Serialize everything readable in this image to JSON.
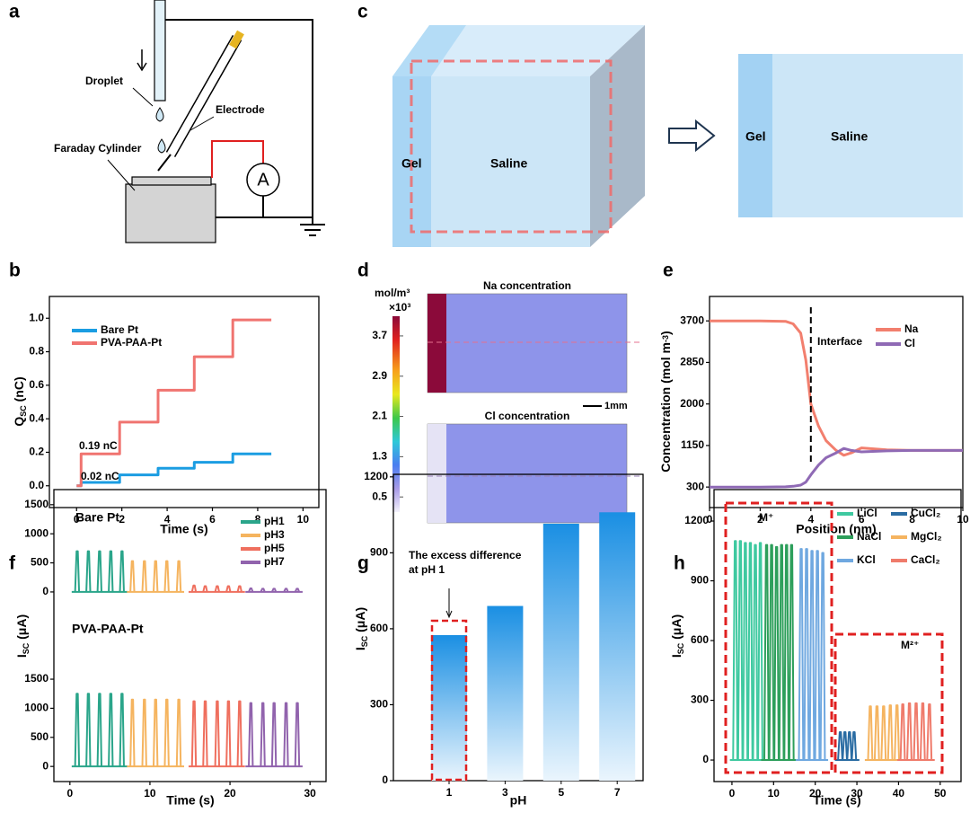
{
  "diagram_a": {
    "label": "a",
    "droplet": "Droplet",
    "electrode": "Electrode",
    "cylinder": "Faraday Cylinder",
    "ammeter": "A"
  },
  "diagram_c": {
    "label": "c",
    "gel": "Gel",
    "saline": "Saline",
    "gel_2": "Gel",
    "saline_2": "Saline"
  },
  "map_d": {
    "label": "d",
    "unit": "mol/m³",
    "scale": "×10³",
    "na_title": "Na concentration",
    "cl_title": "Cl concentration",
    "scalebar": "1mm",
    "colorbar": {
      "lim": [
        0.2,
        4.27
      ],
      "ticks": [
        {
          "value": 3.7,
          "label": "3.7"
        },
        {
          "value": 2.9,
          "label": "2.9"
        },
        {
          "value": 2.1,
          "label": "2.1"
        },
        {
          "value": 1.3,
          "label": "1.3"
        },
        {
          "value": 0.5,
          "label": "0.5"
        }
      ]
    }
  },
  "chart_data": [
    {
      "type": "line",
      "label": "b",
      "ylabel": {
        "text": "Q",
        "sub": "SC",
        "rest": " (nC)"
      },
      "xlabel": "Time (s)",
      "xlim": [
        -1.2,
        10.7
      ],
      "ylim": [
        -0.13,
        1.13
      ],
      "xticks": [
        0,
        2,
        4,
        6,
        8,
        10
      ],
      "yticks": [
        {
          "value": 0,
          "label": "0.0"
        },
        {
          "value": 0.2,
          "label": "0.2"
        },
        {
          "value": 0.4,
          "label": "0.4"
        },
        {
          "value": 0.6,
          "label": "0.6"
        },
        {
          "value": 0.8,
          "label": "0.8"
        },
        {
          "value": 1,
          "label": "1.0"
        }
      ],
      "annotations": [
        {
          "text": "0.19 nC",
          "color": "#f07470"
        },
        {
          "text": "0.02 nC",
          "color": "#1b9de2"
        }
      ],
      "series": [
        {
          "name": "Bare Pt",
          "color": "#1b9de2",
          "x": [
            0,
            0.2,
            0.2,
            1.9,
            1.9,
            3.6,
            3.6,
            5.2,
            5.2,
            6.9,
            6.9,
            8.6
          ],
          "values": [
            0,
            0,
            0.02,
            0.02,
            0.065,
            0.065,
            0.105,
            0.105,
            0.14,
            0.14,
            0.19,
            0.19
          ]
        },
        {
          "name": "PVA-PAA-Pt",
          "color": "#f07470",
          "x": [
            0,
            0.2,
            0.2,
            1.9,
            1.9,
            3.6,
            3.6,
            5.2,
            5.2,
            6.9,
            6.9,
            8.6
          ],
          "values": [
            0,
            0,
            0.19,
            0.19,
            0.38,
            0.38,
            0.57,
            0.57,
            0.77,
            0.77,
            0.99,
            0.99
          ]
        }
      ]
    },
    {
      "type": "line",
      "label": "e",
      "ylabel": {
        "text": "Concentration (mol m",
        "sup": "-3",
        "rest": ")"
      },
      "xlabel": "Position (nm)",
      "xlim": [
        0,
        10
      ],
      "ylim": [
        -120,
        4200
      ],
      "xticks": [
        0,
        2,
        4,
        6,
        8,
        10
      ],
      "yticks": [
        300,
        1150,
        2000,
        2850,
        3700
      ],
      "annotations": [
        {
          "text": "Interface",
          "x": 4
        }
      ],
      "x": [
        0,
        1,
        2,
        3,
        3.3,
        3.6,
        3.8,
        4,
        4.3,
        4.6,
        5,
        5.3,
        5.6,
        6,
        7,
        8,
        9,
        10
      ],
      "series": [
        {
          "name": "Na",
          "color": "#f27f6e",
          "values": [
            3700,
            3700,
            3700,
            3690,
            3640,
            3450,
            2900,
            2000,
            1550,
            1250,
            1050,
            950,
            1000,
            1100,
            1060,
            1050,
            1050,
            1050
          ]
        },
        {
          "name": "Cl",
          "color": "#8f6ab5",
          "values": [
            300,
            300,
            300,
            305,
            315,
            340,
            400,
            550,
            750,
            900,
            1000,
            1090,
            1050,
            1020,
            1040,
            1050,
            1050,
            1050
          ]
        }
      ]
    },
    {
      "type": "pulse",
      "label": "f",
      "ylabel": {
        "text": "I",
        "sub": "SC",
        "rest": " (μA)"
      },
      "xlabel": "Time (s)",
      "xlim": [
        -2,
        32
      ],
      "xticks": [
        0,
        10,
        20,
        30
      ],
      "series": [
        {
          "name": "pH1",
          "color": "#2aa58a",
          "times": [
            0.9,
            2.3,
            3.7,
            5.1,
            6.5
          ]
        },
        {
          "name": "pH3",
          "color": "#f5b45f",
          "times": [
            7.8,
            9.3,
            10.7,
            12.1,
            13.6
          ]
        },
        {
          "name": "pH5",
          "color": "#ef6f5e",
          "times": [
            15.5,
            16.9,
            18.4,
            19.8,
            21.2
          ]
        },
        {
          "name": "pH7",
          "color": "#9163ad",
          "times": [
            22.6,
            24.1,
            25.5,
            27,
            28.4
          ]
        }
      ],
      "subplots": [
        {
          "label": "Bare Pt",
          "ylim": [
            -480,
            1760
          ],
          "yticks": [
            0,
            500,
            1000,
            1500
          ],
          "peaks": [
            [
              700,
              700,
              700,
              700,
              700
            ],
            [
              530,
              530,
              530,
              530,
              530
            ],
            [
              110,
              100,
              100,
              100,
              100
            ],
            [
              60,
              55,
              55,
              55,
              55
            ]
          ]
        },
        {
          "label": "PVA-PAA-Pt",
          "ylim": [
            -260,
            2520
          ],
          "yticks": [
            0,
            500,
            1000,
            1500
          ],
          "peaks": [
            [
              1250,
              1250,
              1250,
              1250,
              1250
            ],
            [
              1150,
              1150,
              1150,
              1150,
              1150
            ],
            [
              1120,
              1120,
              1120,
              1120,
              1120
            ],
            [
              1090,
              1090,
              1090,
              1090,
              1090
            ]
          ]
        }
      ]
    },
    {
      "type": "bar",
      "label": "g",
      "ylabel": {
        "text": "I",
        "sub": "SC",
        "rest": " (μA)"
      },
      "xlabel": "pH",
      "categories": [
        "1",
        "3",
        "5",
        "7"
      ],
      "values": [
        575,
        690,
        1015,
        1060
      ],
      "color": "#1a8fe3",
      "ylim": [
        0,
        1210
      ],
      "yticks": [
        0,
        300,
        600,
        900,
        1200
      ],
      "annotation": [
        "The excess difference",
        "at pH 1"
      ]
    },
    {
      "type": "pulse",
      "label": "h",
      "ylabel": {
        "text": "I",
        "sub": "SC",
        "rest": " (μA)"
      },
      "xlabel": "Time (s)",
      "xlim": [
        -4.3,
        55
      ],
      "xticks": [
        0,
        10,
        20,
        30,
        40,
        50
      ],
      "groups": [
        "M⁺",
        "M²⁺"
      ],
      "series": [
        {
          "name": "LiCl",
          "color": "#3ec9a0",
          "times": [
            0.8,
            2.0,
            3.2,
            4.4,
            5.6,
            6.8
          ]
        },
        {
          "name": "NaCl",
          "color": "#2d9f5b",
          "times": [
            8.3,
            9.5,
            10.7,
            11.9,
            13.1,
            14.3
          ]
        },
        {
          "name": "KCl",
          "color": "#6fa8e0",
          "times": [
            16.6,
            17.9,
            19.2,
            20.5,
            21.8
          ]
        },
        {
          "name": "CuCl₂",
          "color": "#2a6ca3",
          "times": [
            26,
            27.1,
            28.2,
            29.3
          ]
        },
        {
          "name": "MgCl₂",
          "color": "#f5b460",
          "times": [
            33.2,
            34.8,
            36.4,
            38,
            39.6
          ]
        },
        {
          "name": "CaCl₂",
          "color": "#ef7b6b",
          "times": [
            41,
            42.6,
            44.2,
            45.8,
            47.4
          ]
        }
      ],
      "subplots": [
        {
          "ylim": [
            -108,
            1358
          ],
          "yticks": [
            0,
            300,
            600,
            900,
            1200
          ],
          "peaks": [
            [
              1100,
              1100,
              1090,
              1090,
              1080,
              1090
            ],
            [
              1080,
              1080,
              1070,
              1080,
              1080,
              1080
            ],
            [
              1060,
              1060,
              1050,
              1050,
              1040
            ],
            [
              140,
              140,
              140,
              140
            ],
            [
              270,
              270,
              270,
              275,
              275
            ],
            [
              280,
              285,
              285,
              285,
              280
            ]
          ]
        }
      ]
    }
  ]
}
